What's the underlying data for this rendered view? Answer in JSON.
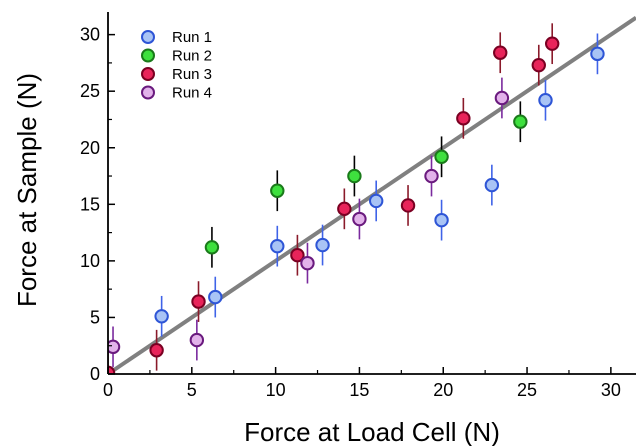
{
  "chart_data": {
    "type": "scatter",
    "title": "",
    "xlabel": "Force at Load Cell (N)",
    "ylabel": "Force at Sample (N)",
    "xlim": [
      0,
      31.5
    ],
    "ylim": [
      0,
      32
    ],
    "xticks": [
      0,
      5,
      10,
      15,
      20,
      25,
      30
    ],
    "yticks": [
      0,
      5,
      10,
      15,
      20,
      25,
      30
    ],
    "grid": false,
    "legend_position": "top-left",
    "fit_line": {
      "x": [
        0,
        31.5
      ],
      "y": [
        0,
        31.5
      ],
      "color": "#808080"
    },
    "series": [
      {
        "name": "Run 1",
        "fill": "#a9c4f5",
        "stroke": "#2e55d6",
        "error_color": "#3f63e8",
        "points": [
          {
            "x": 3.2,
            "y": 5.1,
            "err": 1.8
          },
          {
            "x": 6.4,
            "y": 6.8,
            "err": 1.8
          },
          {
            "x": 10.1,
            "y": 11.3,
            "err": 1.8
          },
          {
            "x": 12.8,
            "y": 11.4,
            "err": 1.8
          },
          {
            "x": 16.0,
            "y": 15.3,
            "err": 1.8
          },
          {
            "x": 19.9,
            "y": 13.6,
            "err": 1.8
          },
          {
            "x": 22.9,
            "y": 16.7,
            "err": 1.8
          },
          {
            "x": 26.1,
            "y": 24.2,
            "err": 1.8
          },
          {
            "x": 29.2,
            "y": 28.3,
            "err": 1.8
          }
        ]
      },
      {
        "name": "Run 2",
        "fill": "#3ee03e",
        "stroke": "#1a7a1a",
        "error_color": "#000000",
        "points": [
          {
            "x": 6.2,
            "y": 11.2,
            "err": 1.8
          },
          {
            "x": 10.1,
            "y": 16.2,
            "err": 1.8
          },
          {
            "x": 14.7,
            "y": 17.5,
            "err": 1.8
          },
          {
            "x": 19.9,
            "y": 19.2,
            "err": 1.8
          },
          {
            "x": 24.6,
            "y": 22.3,
            "err": 1.8
          }
        ]
      },
      {
        "name": "Run 3",
        "fill": "#e8245a",
        "stroke": "#7a0022",
        "error_color": "#8a1a2a",
        "points": [
          {
            "x": 0.0,
            "y": 0.1,
            "err": 1.8
          },
          {
            "x": 2.9,
            "y": 2.1,
            "err": 1.8
          },
          {
            "x": 5.4,
            "y": 6.4,
            "err": 1.8
          },
          {
            "x": 11.3,
            "y": 10.5,
            "err": 1.8
          },
          {
            "x": 14.1,
            "y": 14.6,
            "err": 1.8
          },
          {
            "x": 17.9,
            "y": 14.9,
            "err": 1.8
          },
          {
            "x": 21.2,
            "y": 22.6,
            "err": 1.8
          },
          {
            "x": 23.4,
            "y": 28.4,
            "err": 1.8
          },
          {
            "x": 25.7,
            "y": 27.3,
            "err": 1.8
          },
          {
            "x": 26.5,
            "y": 29.2,
            "err": 1.8
          }
        ]
      },
      {
        "name": "Run 4",
        "fill": "#e2b2ea",
        "stroke": "#6a1a7e",
        "error_color": "#7a2a9e",
        "points": [
          {
            "x": 0.3,
            "y": 2.4,
            "err": 1.8
          },
          {
            "x": 5.3,
            "y": 3.0,
            "err": 1.8
          },
          {
            "x": 11.9,
            "y": 9.8,
            "err": 1.8
          },
          {
            "x": 15.0,
            "y": 13.7,
            "err": 1.8
          },
          {
            "x": 19.3,
            "y": 17.5,
            "err": 1.8
          },
          {
            "x": 23.5,
            "y": 24.4,
            "err": 1.8
          }
        ]
      }
    ]
  }
}
